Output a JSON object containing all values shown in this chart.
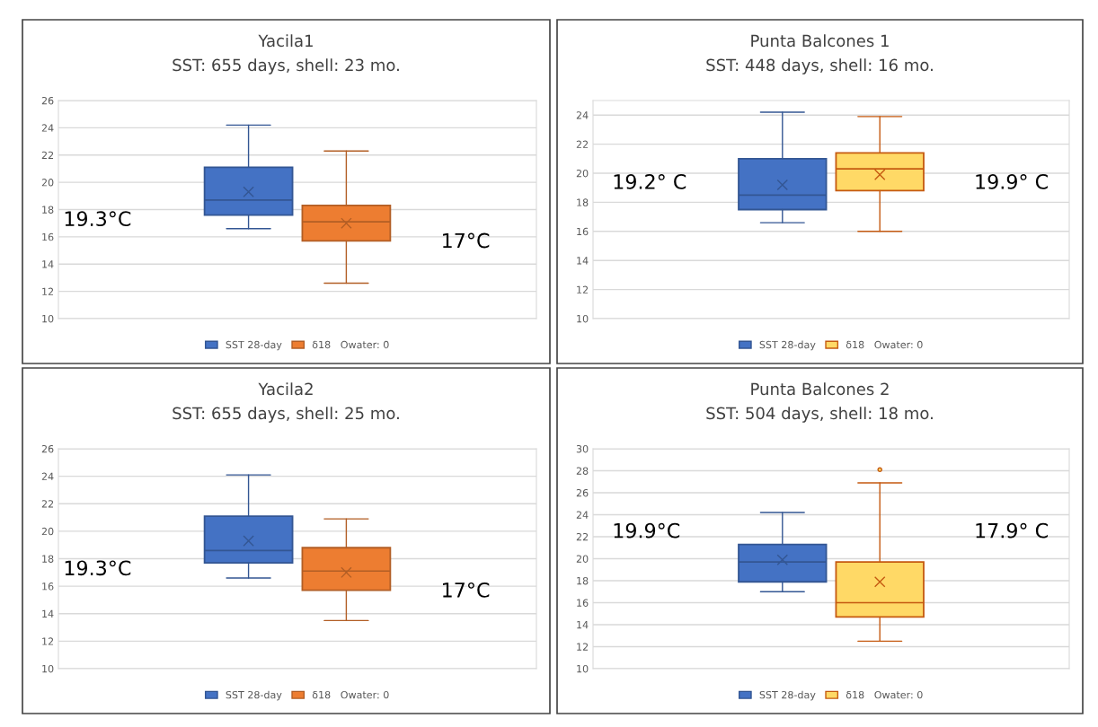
{
  "chart_data": [
    {
      "type": "box",
      "title": "Yacila1",
      "subtitle": "SST: 655 days, shell: 23 mo.",
      "categories": [
        null
      ],
      "ylim": [
        10,
        26
      ],
      "yticks": [
        10,
        12,
        14,
        16,
        18,
        20,
        22,
        24,
        26
      ],
      "grid": "y",
      "legend": "bottom",
      "tick_labels": "y",
      "annotations": [
        "19.3°C",
        "17°C"
      ],
      "series": [
        {
          "name": "SST 28-day",
          "color": "#4472c4",
          "boxes": [
            {
              "low": 16.6,
              "q1": 17.6,
              "median": 18.7,
              "q3": 21.1,
              "high": 24.2,
              "mean": 19.3
            }
          ]
        },
        {
          "name": "δ18   Owater: 0",
          "color": "#ed7d31",
          "boxes": [
            {
              "low": 12.6,
              "q1": 15.7,
              "median": 17.1,
              "q3": 18.3,
              "high": 22.3,
              "mean": 17.0
            }
          ]
        }
      ]
    },
    {
      "type": "box",
      "title": "Punta Balcones 1",
      "subtitle": "SST: 448 days, shell: 16 mo.",
      "categories": [
        null
      ],
      "ylim": [
        10,
        25
      ],
      "yticks": [
        10,
        12,
        14,
        16,
        18,
        20,
        22,
        24
      ],
      "grid": "y",
      "legend": "bottom",
      "tick_labels": "y",
      "annotations": [
        "19.2° C",
        "19.9° C"
      ],
      "series": [
        {
          "name": "SST 28-day",
          "color": "#4472c4",
          "boxes": [
            {
              "low": 16.6,
              "q1": 17.5,
              "median": 18.5,
              "q3": 21.0,
              "high": 24.2,
              "mean": 19.2
            }
          ]
        },
        {
          "name": "δ18   Owater: 0",
          "color": "#ffd966",
          "boxes": [
            {
              "low": 16.0,
              "q1": 18.8,
              "median": 20.3,
              "q3": 21.4,
              "high": 23.9,
              "mean": 19.9
            }
          ]
        }
      ]
    },
    {
      "type": "box",
      "title": "Yacila2",
      "subtitle": "SST: 655 days, shell: 25 mo.",
      "categories": [
        null
      ],
      "ylim": [
        10,
        26
      ],
      "yticks": [
        10,
        12,
        14,
        16,
        18,
        20,
        22,
        24,
        26
      ],
      "grid": "y",
      "legend": "bottom",
      "tick_labels": "y",
      "annotations": [
        "19.3°C",
        "17°C"
      ],
      "series": [
        {
          "name": "SST 28-day",
          "color": "#4472c4",
          "boxes": [
            {
              "low": 16.6,
              "q1": 17.7,
              "median": 18.6,
              "q3": 21.1,
              "high": 24.1,
              "mean": 19.3
            }
          ]
        },
        {
          "name": "δ18   Owater: 0",
          "color": "#ed7d31",
          "boxes": [
            {
              "low": 13.5,
              "q1": 15.7,
              "median": 17.1,
              "q3": 18.8,
              "high": 20.9,
              "mean": 17.0
            }
          ]
        }
      ]
    },
    {
      "type": "box",
      "title": "Punta Balcones 2",
      "subtitle": "SST: 504 days, shell: 18 mo.",
      "categories": [
        null
      ],
      "ylim": [
        10,
        30
      ],
      "yticks": [
        10,
        12,
        14,
        16,
        18,
        20,
        22,
        24,
        26,
        28,
        30
      ],
      "grid": "y",
      "legend": "bottom",
      "tick_labels": "y",
      "annotations": [
        "19.9°C",
        "17.9° C"
      ],
      "series": [
        {
          "name": "SST 28-day",
          "color": "#4472c4",
          "boxes": [
            {
              "low": 17.0,
              "q1": 17.9,
              "median": 19.7,
              "q3": 21.3,
              "high": 24.2,
              "mean": 19.9
            }
          ]
        },
        {
          "name": "δ18   Owater: 0",
          "color": "#ffd966",
          "boxes": [
            {
              "low": 12.5,
              "q1": 14.7,
              "median": 16.0,
              "q3": 19.7,
              "high": 26.9,
              "mean": 17.9,
              "outliers": [
                28.1
              ]
            }
          ]
        }
      ]
    }
  ]
}
